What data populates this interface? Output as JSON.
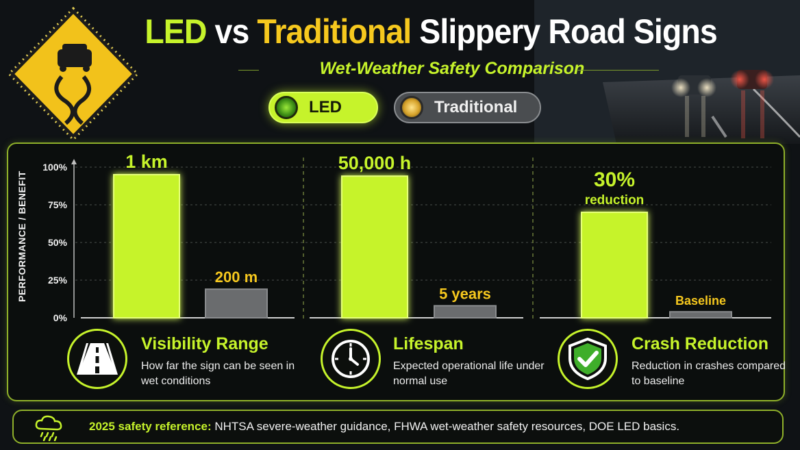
{
  "header": {
    "title_led": "LED",
    "title_vs": "vs",
    "title_traditional": "Traditional",
    "title_rest": "Slippery Road Signs",
    "subtitle": "Wet-Weather Safety Comparison"
  },
  "legend": {
    "led_label": "LED",
    "traditional_label": "Traditional"
  },
  "colors": {
    "led": "#c6f32b",
    "traditional": "#6a6c6e",
    "traditional_label": "#f6c81e",
    "accent": "#c6f32b"
  },
  "chart_data": {
    "type": "bar",
    "ylabel": "PERFORMANCE / BENEFIT",
    "y_ticks": [
      "100%",
      "75%",
      "50%",
      "25%",
      "0%"
    ],
    "ylim": [
      0,
      100
    ],
    "grid": true,
    "series": [
      {
        "name": "LED",
        "values": [
          95,
          94,
          70
        ]
      },
      {
        "name": "Traditional",
        "values": [
          19,
          8,
          4
        ]
      }
    ],
    "categories": [
      "Visibility Range",
      "Lifespan",
      "Crash Reduction"
    ],
    "data_labels": {
      "led": [
        "1 km",
        "50,000 h",
        "30%"
      ],
      "led_sub": [
        "",
        "",
        "reduction"
      ],
      "traditional": [
        "200 m",
        "5 years",
        "Baseline"
      ]
    }
  },
  "metrics": [
    {
      "title": "Visibility Range",
      "description": "How far the sign can be seen in wet conditions",
      "icon": "road-icon"
    },
    {
      "title": "Lifespan",
      "description": "Expected operational life under normal use",
      "icon": "clock-icon"
    },
    {
      "title": "Crash Reduction",
      "description": "Reduction in crashes compared to baseline",
      "icon": "shield-check-icon"
    }
  ],
  "footer": {
    "label": "2025 safety reference:",
    "text": "NHTSA severe-weather guidance, FHWA wet-weather safety resources, DOE LED basics.",
    "icon": "rain-cloud-icon"
  }
}
